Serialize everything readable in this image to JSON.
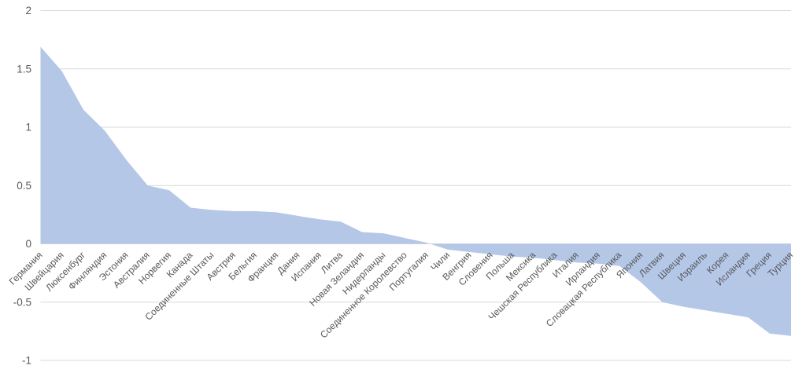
{
  "chart_data": {
    "type": "area",
    "title": "",
    "xlabel": "",
    "ylabel": "",
    "legend": "none",
    "grid": true,
    "ylim": [
      -1,
      2
    ],
    "ytick_labels": [
      "2",
      "1.5",
      "1",
      "0.5",
      "0",
      "-0.5",
      "-1"
    ],
    "ytick_values": [
      2,
      1.5,
      1,
      0.5,
      0,
      -0.5,
      -1
    ],
    "categories": [
      "Германия",
      "Швейцария",
      "Люксенбург",
      "Финляндия",
      "Эстония",
      "Австралия",
      "Норвегия",
      "Канада",
      "Соединенные Штаты",
      "Австрия",
      "Бельгия",
      "Франция",
      "Дания",
      "Испания",
      "Литва",
      "Новая Зеландия",
      "Нидерланды",
      "Соединенное Королевство",
      "Португалия",
      "Чили",
      "Венгрия",
      "Словения",
      "Польша",
      "Мексика",
      "Чешская Республика",
      "Италия",
      "Ирландия",
      "Словацкая Республика",
      "Япония",
      "Латвия",
      "Швеция",
      "Израиль",
      "Корея",
      "Исландия",
      "Греция",
      "Турция"
    ],
    "values": [
      1.69,
      1.48,
      1.15,
      0.97,
      0.72,
      0.5,
      0.46,
      0.31,
      0.29,
      0.28,
      0.28,
      0.27,
      0.24,
      0.21,
      0.19,
      0.1,
      0.09,
      0.05,
      0.01,
      -0.05,
      -0.07,
      -0.09,
      -0.11,
      -0.12,
      -0.14,
      -0.16,
      -0.17,
      -0.19,
      -0.33,
      -0.5,
      -0.54,
      -0.57,
      -0.6,
      -0.63,
      -0.77,
      -0.79
    ],
    "colors": {
      "area_fill": "#B4C7E7",
      "gridline": "#D9D9D9",
      "axis_text": "#595959",
      "background": "#FFFFFF"
    }
  }
}
